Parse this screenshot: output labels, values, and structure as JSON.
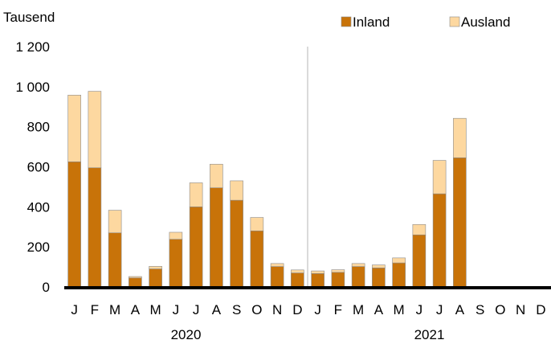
{
  "chart_data": {
    "type": "bar",
    "stacked": true,
    "unit_label": "Tausend",
    "categories": [
      "J",
      "F",
      "M",
      "A",
      "M",
      "J",
      "J",
      "A",
      "S",
      "O",
      "N",
      "D",
      "J",
      "F",
      "M",
      "A",
      "M",
      "J",
      "J",
      "A",
      "S",
      "O",
      "N",
      "D"
    ],
    "year_groups": [
      {
        "label": "2020",
        "start": 0,
        "count": 12
      },
      {
        "label": "2021",
        "start": 12,
        "count": 12
      }
    ],
    "series": [
      {
        "name": "Inland",
        "color": "#c87309",
        "values": [
          625,
          595,
          270,
          45,
          90,
          238,
          400,
          495,
          433,
          280,
          102,
          70,
          67,
          73,
          102,
          95,
          120,
          260,
          465,
          645,
          null,
          null,
          null,
          null
        ]
      },
      {
        "name": "Ausland",
        "color": "#fdd8a0",
        "values": [
          333,
          382,
          113,
          7,
          13,
          35,
          120,
          118,
          97,
          67,
          15,
          15,
          13,
          13,
          15,
          15,
          25,
          52,
          167,
          197,
          null,
          null,
          null,
          null
        ]
      }
    ],
    "ylim": [
      0,
      1200
    ],
    "yticks": [
      0,
      200,
      400,
      600,
      800,
      1000,
      1200
    ],
    "ytick_labels": [
      "0",
      "200",
      "400",
      "600",
      "800",
      "1 000",
      "1 200"
    ],
    "legend_position": "top-right",
    "grid": false
  }
}
